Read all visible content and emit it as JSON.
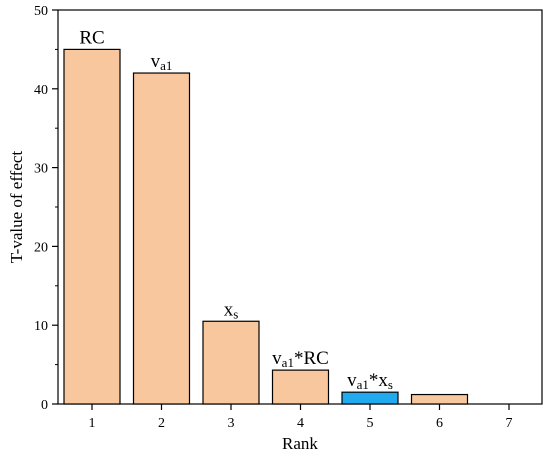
{
  "chart_data": {
    "type": "bar",
    "xlabel": "Rank",
    "ylabel": "T-value of effect",
    "ylim": [
      0,
      50
    ],
    "yticks": [
      0,
      10,
      20,
      30,
      40,
      50
    ],
    "categories": [
      "1",
      "2",
      "3",
      "4",
      "5",
      "6",
      "7"
    ],
    "values": [
      45,
      42,
      10.5,
      4.3,
      1.5,
      1.2,
      0
    ],
    "bar_labels": [
      {
        "parts": [
          {
            "t": "RC",
            "sub": false
          }
        ]
      },
      {
        "parts": [
          {
            "t": "v",
            "sub": false
          },
          {
            "t": "a1",
            "sub": true
          }
        ]
      },
      {
        "parts": [
          {
            "t": "x",
            "sub": false
          },
          {
            "t": "s",
            "sub": true
          }
        ]
      },
      {
        "parts": [
          {
            "t": "v",
            "sub": false
          },
          {
            "t": "a1",
            "sub": true
          },
          {
            "t": "*RC",
            "sub": false
          }
        ]
      },
      {
        "parts": [
          {
            "t": "v",
            "sub": false
          },
          {
            "t": "a1",
            "sub": true
          },
          {
            "t": "*x",
            "sub": false
          },
          {
            "t": "s",
            "sub": true
          }
        ]
      },
      {
        "parts": []
      },
      {
        "parts": []
      }
    ],
    "colors": [
      "#f9c79e",
      "#f9c79e",
      "#f9c79e",
      "#f9c79e",
      "#22aaee",
      "#f9c79e",
      "#f9c79e"
    ],
    "grid": false,
    "legend": "none"
  }
}
